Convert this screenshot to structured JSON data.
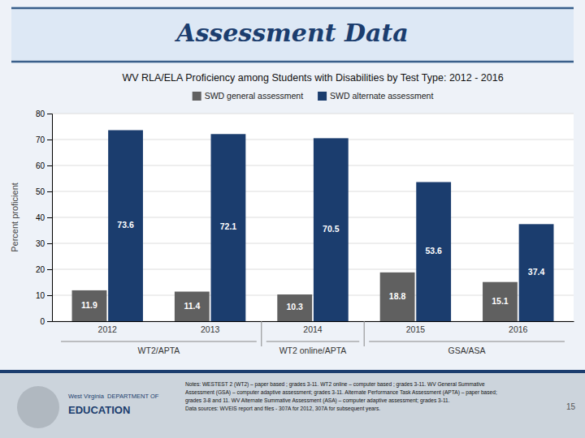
{
  "chart_data": {
    "type": "bar",
    "title": "WV RLA/ELA Proficiency among Students with Disabilities by Test Type: 2012 - 2016",
    "ylabel": "Percent proficient",
    "categories": [
      "2012",
      "2013",
      "2014",
      "2015",
      "2016"
    ],
    "groups": [
      {
        "label": "WT2/APTA",
        "categories": [
          "2012",
          "2013"
        ]
      },
      {
        "label": "WT2 online/APTA",
        "categories": [
          "2014"
        ]
      },
      {
        "label": "GSA/ASA",
        "categories": [
          "2015",
          "2016"
        ]
      }
    ],
    "series": [
      {
        "name": "SWD general assessment",
        "color": "#606060",
        "values": [
          11.9,
          11.4,
          10.3,
          18.8,
          15.1
        ]
      },
      {
        "name": "SWD alternate assessment",
        "color": "#1b3d6e",
        "values": [
          73.6,
          72.1,
          70.5,
          53.6,
          37.4
        ]
      }
    ],
    "ylim": [
      0,
      80
    ],
    "yticks": [
      0,
      10,
      20,
      30,
      40,
      50,
      60,
      70,
      80
    ],
    "grid": true,
    "data_labels": true,
    "legend": "top"
  },
  "header": "Assessment Data",
  "footer": {
    "logo_text": [
      "West Virginia  DEPARTMENT OF",
      "EDUCATION"
    ],
    "notes": [
      "Notes: WESTEST 2 (WT2) – paper based ; grades 3-11. WT2 online – computer based ; grades 3-11. WV General Summative",
      "Assessment (GSA) – computer adaptive assessment; grades 3-11. Alternate Performance Task Assessment (APTA) – paper based;",
      "grades 3-8 and 11. WV Alternate Summative Assessment (ASA) – computer adaptive assessment; grades 3-11.",
      "Data sources: WVEIS report and files - 307A for 2012, 307A for subsequent years."
    ],
    "page_number": "15"
  }
}
